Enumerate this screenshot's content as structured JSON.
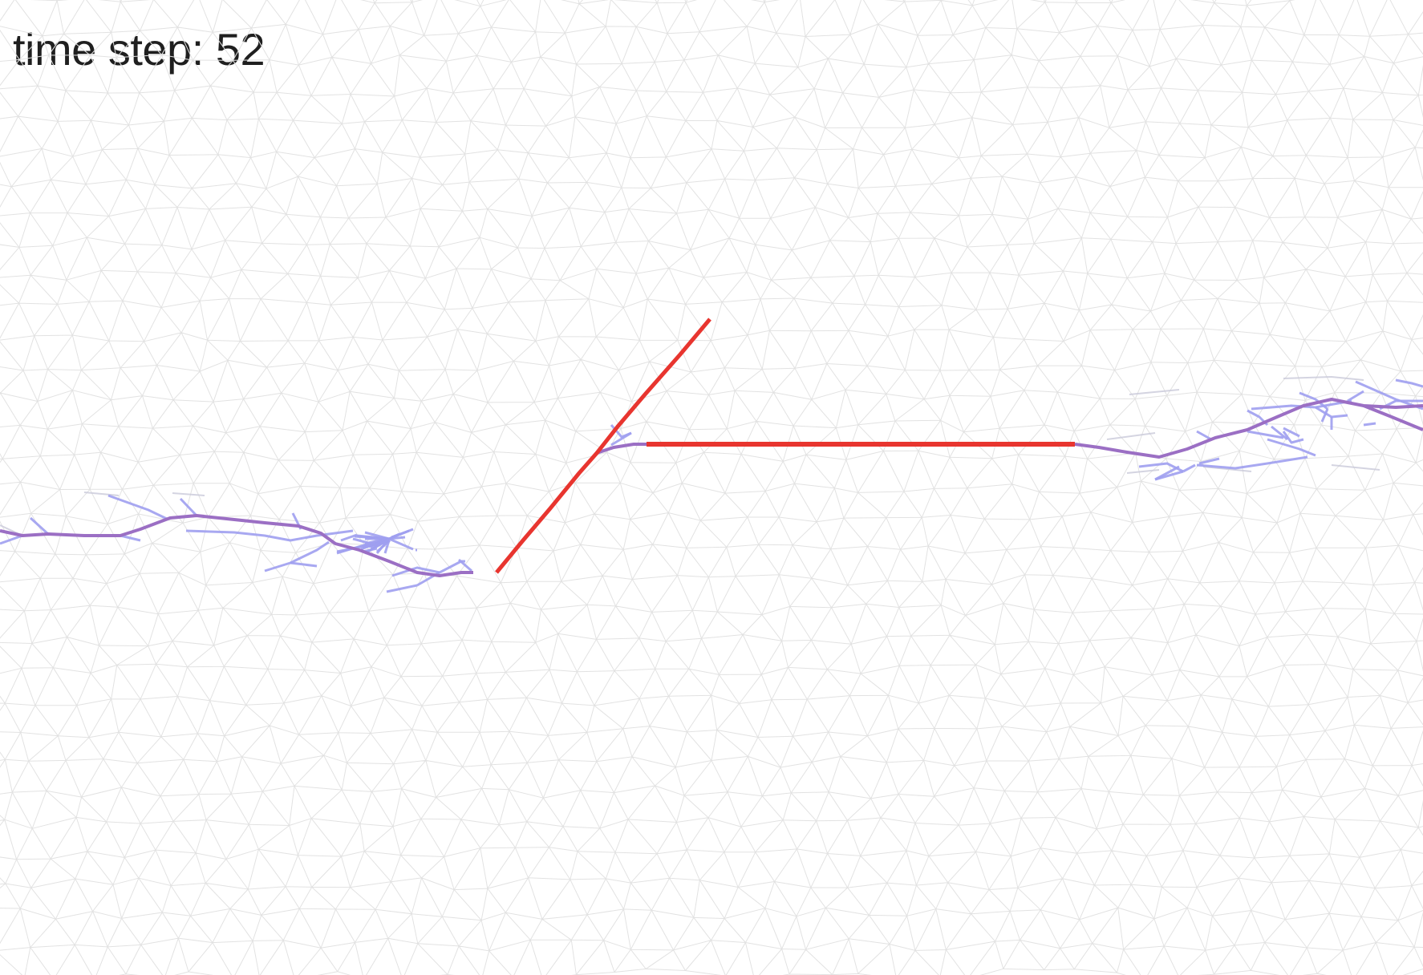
{
  "status": {
    "label": "time step:",
    "time_step": "52"
  },
  "colors": {
    "background": "#ffffff",
    "mesh": "#e2e2e2",
    "main_path": "#e8352f",
    "branch_strong": "#9b6fc4",
    "branch_light": "#9f9ff0",
    "faint_edge": "#c9c9d9",
    "text": "#1f1f1f"
  }
}
